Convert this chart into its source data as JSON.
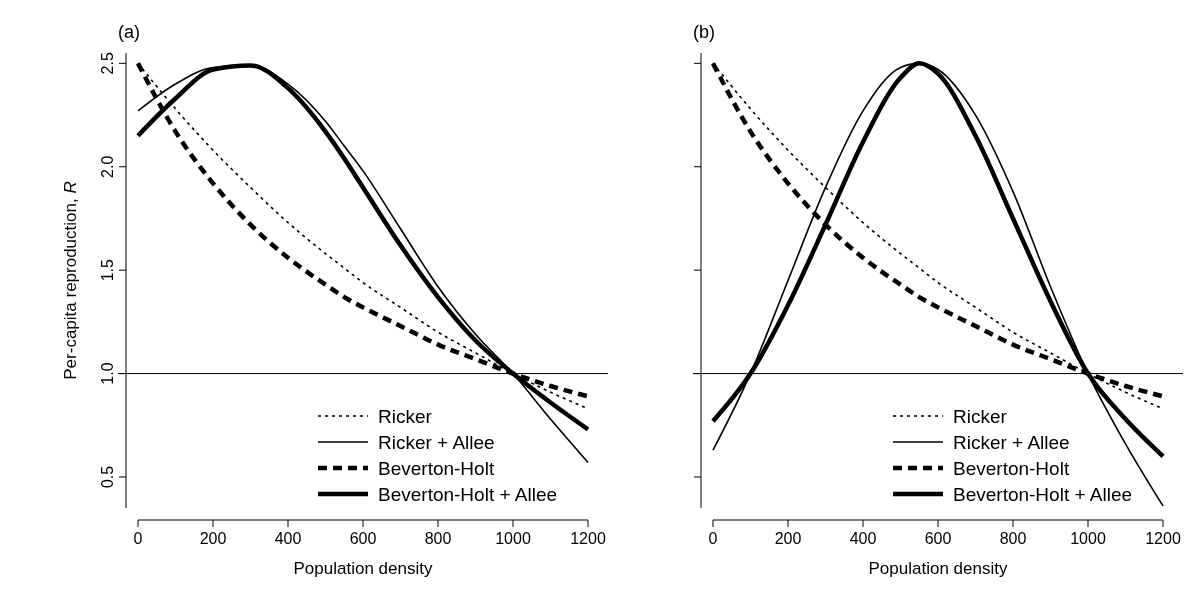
{
  "chart_data": [
    {
      "type": "line",
      "title": "(a)",
      "xlabel": "Population density",
      "ylabel": "Per-capita reproduction, R",
      "x": [
        0,
        100,
        200,
        300,
        400,
        500,
        550,
        600,
        700,
        800,
        900,
        1000,
        1100,
        1200
      ],
      "xlim": [
        0,
        1200
      ],
      "xticks": [
        0,
        200,
        400,
        600,
        800,
        1000,
        1200
      ],
      "ylim": [
        0.35,
        2.55
      ],
      "yticks": [
        {
          "value": 0.5,
          "label": "0.5"
        },
        {
          "value": 1,
          "label": "1.0"
        },
        {
          "value": 1.5,
          "label": "1.5"
        },
        {
          "value": 2,
          "label": "2.0"
        },
        {
          "value": 2.5,
          "label": "2.5"
        }
      ],
      "grid": false,
      "legend": "bottom right",
      "marker": "none",
      "ref_lines": [
        {
          "axis": "y",
          "value": 1,
          "color": "#000000"
        }
      ],
      "series": [
        {
          "name": "Ricker",
          "color": "#000000",
          "line_style": "dotted",
          "values": [
            2.5,
            2.28,
            2.08,
            1.9,
            1.73,
            1.58,
            1.51,
            1.44,
            1.32,
            1.2,
            1.1,
            1.0,
            0.91,
            0.83
          ]
        },
        {
          "name": "Ricker + Allee",
          "color": "#000000",
          "line_style": "solid",
          "values": [
            2.27,
            2.4,
            2.48,
            2.49,
            2.4,
            2.22,
            2.1,
            1.98,
            1.7,
            1.42,
            1.19,
            1.0,
            0.78,
            0.57
          ]
        },
        {
          "name": "Beverton-Holt",
          "color": "#000000",
          "line_style": "dashed",
          "values": [
            2.5,
            2.17,
            1.92,
            1.72,
            1.56,
            1.43,
            1.37,
            1.32,
            1.23,
            1.14,
            1.07,
            1.0,
            0.94,
            0.89
          ]
        },
        {
          "name": "Beverton-Holt + Allee",
          "color": "#000000",
          "line_style": "solid",
          "values": [
            2.15,
            2.33,
            2.47,
            2.49,
            2.38,
            2.17,
            2.04,
            1.9,
            1.62,
            1.37,
            1.16,
            1.0,
            0.86,
            0.73
          ]
        }
      ]
    },
    {
      "type": "line",
      "title": "(b)",
      "xlabel": "Population density",
      "x": [
        0,
        100,
        200,
        300,
        400,
        500,
        550,
        600,
        700,
        800,
        900,
        1000,
        1100,
        1200
      ],
      "xlim": [
        0,
        1200
      ],
      "xticks": [
        0,
        200,
        400,
        600,
        800,
        1000,
        1200
      ],
      "ylim": [
        0.35,
        2.55
      ],
      "yticks": [
        0.5,
        1,
        1.5,
        2,
        2.5
      ],
      "tick_labels": "x",
      "grid": false,
      "legend": "bottom right",
      "marker": "none",
      "ref_lines": [
        {
          "axis": "y",
          "value": 1,
          "color": "#000000"
        }
      ],
      "series": [
        {
          "name": "Ricker",
          "color": "#000000",
          "line_style": "dotted",
          "values": [
            2.5,
            2.28,
            2.08,
            1.9,
            1.73,
            1.58,
            1.51,
            1.44,
            1.32,
            1.2,
            1.1,
            1.0,
            0.91,
            0.83
          ]
        },
        {
          "name": "Ricker + Allee",
          "color": "#000000",
          "line_style": "solid",
          "values": [
            0.63,
            1.0,
            1.45,
            1.9,
            2.27,
            2.48,
            2.5,
            2.47,
            2.25,
            1.88,
            1.42,
            1.0,
            0.66,
            0.36
          ]
        },
        {
          "name": "Beverton-Holt",
          "color": "#000000",
          "line_style": "dashed",
          "values": [
            2.5,
            2.17,
            1.92,
            1.72,
            1.56,
            1.43,
            1.37,
            1.32,
            1.23,
            1.14,
            1.07,
            1.0,
            0.94,
            0.89
          ]
        },
        {
          "name": "Beverton-Holt + Allee",
          "color": "#000000",
          "line_style": "solid",
          "values": [
            0.77,
            1.0,
            1.33,
            1.72,
            2.12,
            2.43,
            2.5,
            2.45,
            2.15,
            1.75,
            1.35,
            1.0,
            0.78,
            0.6
          ]
        }
      ]
    }
  ]
}
